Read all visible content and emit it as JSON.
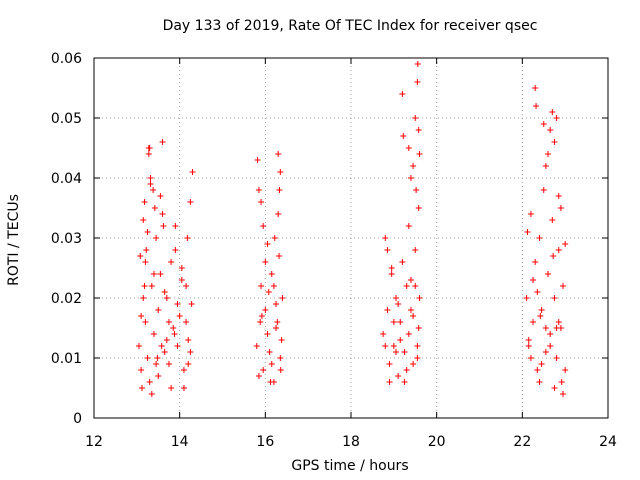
{
  "chart_data": {
    "type": "scatter",
    "title": "Day 133 of 2019, Rate Of TEC Index for receiver qsec",
    "xlabel": "GPS time / hours",
    "ylabel": "ROTI / TECUs",
    "xlim": [
      12,
      24
    ],
    "ylim": [
      0,
      0.06
    ],
    "xticks": [
      12,
      14,
      16,
      18,
      20,
      22,
      24
    ],
    "xtick_labels": [
      "12",
      "14",
      "16",
      "18",
      "20",
      "22",
      "24"
    ],
    "yticks": [
      0,
      0.01,
      0.02,
      0.03,
      0.04,
      0.05,
      0.06
    ],
    "ytick_labels": [
      "0",
      "0.01",
      "0.02",
      "0.03",
      "0.04",
      "0.05",
      "0.06"
    ],
    "grid": true,
    "marker": "+",
    "color": "#ff0000",
    "series": [
      {
        "name": "ROTI",
        "x": [
          13.05,
          13.1,
          13.15,
          13.18,
          13.2,
          13.22,
          13.25,
          13.28,
          13.3,
          13.32,
          13.35,
          13.4,
          13.45,
          13.5,
          13.55,
          13.6,
          13.65,
          13.7,
          13.75,
          13.8,
          13.85,
          13.9,
          13.95,
          14.0,
          14.05,
          14.1,
          14.15,
          14.2,
          14.25,
          14.3,
          13.28,
          13.3,
          13.32,
          13.38,
          13.42,
          13.55,
          13.6,
          13.62,
          13.12,
          13.2,
          13.5,
          13.7,
          13.9,
          14.1,
          14.28,
          13.1,
          13.4,
          13.8,
          14.2,
          13.15,
          13.35,
          13.65,
          13.95,
          14.25,
          13.25,
          13.45,
          13.75,
          14.05,
          13.08,
          13.58,
          14.15,
          13.18,
          13.48,
          13.88,
          14.18,
          15.8,
          15.85,
          15.9,
          15.95,
          16.0,
          16.05,
          16.1,
          16.15,
          16.2,
          16.25,
          16.3,
          16.35,
          16.4,
          15.82,
          15.9,
          16.3,
          16.35,
          16.33,
          15.88,
          16.0,
          16.12,
          16.22,
          16.38,
          15.85,
          16.05,
          16.2,
          16.32,
          15.95,
          16.15,
          16.28,
          15.92,
          16.08,
          16.25,
          16.36,
          18.75,
          18.8,
          18.85,
          18.9,
          18.95,
          19.0,
          19.05,
          19.1,
          19.15,
          19.2,
          19.25,
          19.3,
          19.35,
          19.4,
          19.45,
          19.5,
          19.55,
          19.6,
          19.2,
          19.22,
          19.35,
          19.4,
          19.45,
          19.5,
          19.52,
          19.55,
          19.56,
          19.58,
          19.6,
          19.58,
          18.8,
          19.0,
          19.3,
          19.5,
          18.9,
          19.1,
          19.4,
          18.85,
          19.15,
          19.45,
          18.95,
          19.25,
          19.55,
          19.05,
          19.35,
          19.58,
          22.1,
          22.15,
          22.2,
          22.25,
          22.3,
          22.35,
          22.4,
          22.45,
          22.5,
          22.55,
          22.6,
          22.65,
          22.7,
          22.75,
          22.8,
          22.85,
          22.9,
          22.95,
          23.0,
          22.3,
          22.32,
          22.5,
          22.6,
          22.7,
          22.75,
          22.8,
          22.65,
          22.55,
          22.85,
          22.9,
          22.2,
          22.4,
          22.6,
          22.8,
          23.0,
          22.15,
          22.35,
          22.55,
          22.75,
          22.95,
          22.25,
          22.45,
          22.65,
          22.85,
          22.12,
          22.42,
          22.72,
          22.92
        ],
        "y": [
          0.012,
          0.008,
          0.02,
          0.036,
          0.016,
          0.028,
          0.01,
          0.045,
          0.006,
          0.04,
          0.022,
          0.014,
          0.03,
          0.018,
          0.024,
          0.034,
          0.011,
          0.02,
          0.009,
          0.026,
          0.015,
          0.032,
          0.012,
          0.017,
          0.025,
          0.008,
          0.022,
          0.013,
          0.036,
          0.041,
          0.044,
          0.045,
          0.039,
          0.038,
          0.035,
          0.037,
          0.046,
          0.032,
          0.005,
          0.026,
          0.007,
          0.013,
          0.028,
          0.005,
          0.019,
          0.017,
          0.024,
          0.005,
          0.009,
          0.033,
          0.004,
          0.021,
          0.019,
          0.011,
          0.031,
          0.009,
          0.016,
          0.023,
          0.027,
          0.012,
          0.016,
          0.022,
          0.01,
          0.014,
          0.03,
          0.012,
          0.038,
          0.022,
          0.008,
          0.018,
          0.029,
          0.011,
          0.024,
          0.006,
          0.015,
          0.034,
          0.01,
          0.02,
          0.043,
          0.036,
          0.044,
          0.041,
          0.038,
          0.016,
          0.026,
          0.006,
          0.03,
          0.013,
          0.007,
          0.014,
          0.022,
          0.027,
          0.032,
          0.009,
          0.016,
          0.017,
          0.021,
          0.019,
          0.008,
          0.014,
          0.03,
          0.018,
          0.009,
          0.024,
          0.012,
          0.02,
          0.007,
          0.016,
          0.026,
          0.011,
          0.022,
          0.014,
          0.018,
          0.009,
          0.028,
          0.012,
          0.02,
          0.054,
          0.047,
          0.045,
          0.04,
          0.042,
          0.05,
          0.038,
          0.056,
          0.059,
          0.048,
          0.044,
          0.035,
          0.012,
          0.016,
          0.008,
          0.022,
          0.006,
          0.019,
          0.023,
          0.028,
          0.013,
          0.017,
          0.025,
          0.006,
          0.01,
          0.011,
          0.032,
          0.015,
          0.02,
          0.012,
          0.034,
          0.016,
          0.026,
          0.008,
          0.03,
          0.018,
          0.038,
          0.011,
          0.024,
          0.014,
          0.033,
          0.02,
          0.01,
          0.028,
          0.015,
          0.022,
          0.008,
          0.055,
          0.052,
          0.049,
          0.044,
          0.051,
          0.046,
          0.05,
          0.048,
          0.042,
          0.037,
          0.035,
          0.01,
          0.006,
          0.024,
          0.015,
          0.029,
          0.013,
          0.021,
          0.015,
          0.005,
          0.004,
          0.023,
          0.009,
          0.012,
          0.016,
          0.031,
          0.017,
          0.027,
          0.006
        ]
      }
    ]
  }
}
